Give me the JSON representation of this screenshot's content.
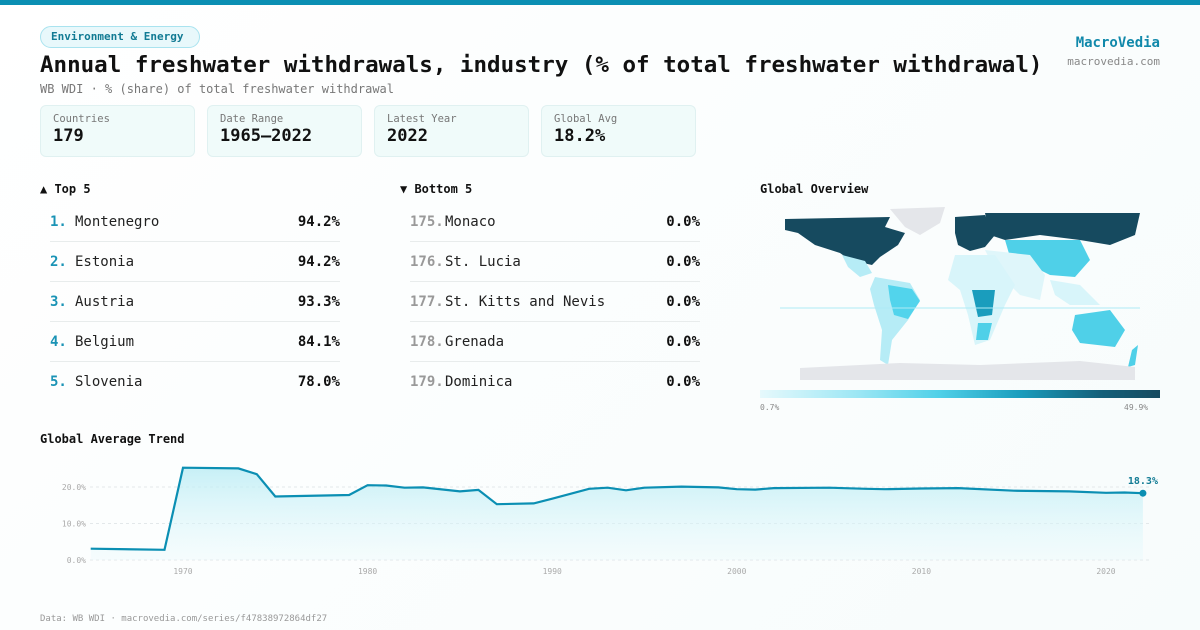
{
  "category_pill": "Environment & Energy",
  "title": "Annual freshwater withdrawals, industry (% of total freshwater withdrawal)",
  "subtitle": "WB WDI · % (share) of total freshwater withdrawal",
  "brand": {
    "name": "MacroVedia",
    "url": "macrovedia.com"
  },
  "stats": [
    {
      "label": "Countries",
      "value": "179"
    },
    {
      "label": "Date Range",
      "value": "1965–2022"
    },
    {
      "label": "Latest Year",
      "value": "2022"
    },
    {
      "label": "Global Avg",
      "value": "18.2%"
    }
  ],
  "top5": {
    "title": "▲ Top 5",
    "items": [
      {
        "rank": "1.",
        "name": "Montenegro",
        "value": "94.2%"
      },
      {
        "rank": "2.",
        "name": "Estonia",
        "value": "94.2%"
      },
      {
        "rank": "3.",
        "name": "Austria",
        "value": "93.3%"
      },
      {
        "rank": "4.",
        "name": "Belgium",
        "value": "84.1%"
      },
      {
        "rank": "5.",
        "name": "Slovenia",
        "value": "78.0%"
      }
    ]
  },
  "bottom5": {
    "title": "▼ Bottom 5",
    "items": [
      {
        "rank": "175.",
        "name": "Monaco",
        "value": "0.0%"
      },
      {
        "rank": "176.",
        "name": "St. Lucia",
        "value": "0.0%"
      },
      {
        "rank": "177.",
        "name": "St. Kitts and Nevis",
        "value": "0.0%"
      },
      {
        "rank": "178.",
        "name": "Grenada",
        "value": "0.0%"
      },
      {
        "rank": "179.",
        "name": "Dominica",
        "value": "0.0%"
      }
    ]
  },
  "map": {
    "title": "Global Overview",
    "legend_min": "0.7%",
    "legend_max": "49.9%"
  },
  "chart_data": {
    "type": "area",
    "title": "Global Average Trend",
    "x": [
      1965,
      1969,
      1970,
      1973,
      1974,
      1975,
      1979,
      1980,
      1981,
      1982,
      1983,
      1985,
      1986,
      1987,
      1989,
      1990,
      1992,
      1993,
      1994,
      1995,
      1997,
      1999,
      2000,
      2001,
      2002,
      2005,
      2007,
      2008,
      2010,
      2012,
      2015,
      2018,
      2020,
      2021,
      2022
    ],
    "y": [
      3.1,
      2.8,
      25.3,
      25.1,
      23.5,
      17.4,
      17.8,
      20.5,
      20.4,
      19.8,
      19.9,
      18.8,
      19.2,
      15.3,
      15.5,
      16.8,
      19.5,
      19.8,
      19.1,
      19.8,
      20.1,
      19.9,
      19.4,
      19.3,
      19.7,
      19.8,
      19.5,
      19.4,
      19.6,
      19.7,
      19.0,
      18.8,
      18.4,
      18.5,
      18.3
    ],
    "ylim": [
      0,
      25
    ],
    "yticks": [
      "0.0%",
      "10.0%",
      "20.0%"
    ],
    "xticks": [
      "1970",
      "1980",
      "1990",
      "2000",
      "2010",
      "2020"
    ],
    "last_label": "18.3%",
    "color": "#0b8fb3"
  },
  "footer": "Data: WB WDI · macrovedia.com/series/f47838972864df27"
}
